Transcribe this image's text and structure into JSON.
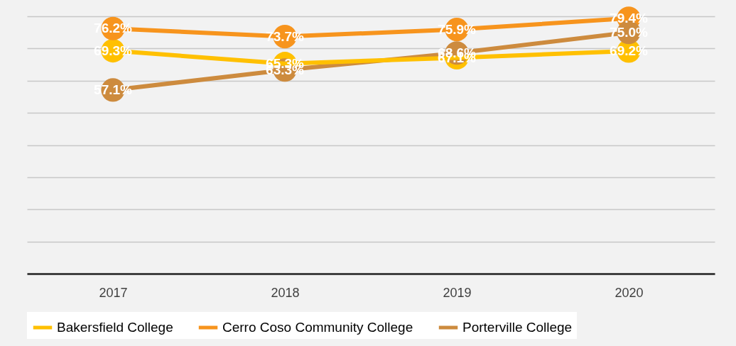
{
  "chart_data": {
    "type": "line",
    "categories": [
      "2017",
      "2018",
      "2019",
      "2020"
    ],
    "series": [
      {
        "name": "Bakersfield College",
        "color": "#ffc000",
        "values": [
          69.3,
          65.3,
          67.1,
          69.2
        ],
        "value_labels": [
          "69.3%",
          "65.3%",
          "67.1%",
          "69.2%"
        ]
      },
      {
        "name": "Cerro Coso Community College",
        "color": "#f7941d",
        "values": [
          76.2,
          73.7,
          75.9,
          79.4
        ],
        "value_labels": [
          "76.2%",
          "73.7%",
          "75.9%",
          "79.4%"
        ]
      },
      {
        "name": "Porterville College",
        "color": "#cd8b3e",
        "values": [
          57.1,
          63.3,
          68.6,
          75.0
        ],
        "value_labels": [
          "57.1%",
          "63.3%",
          "68.6%",
          "75.0%"
        ]
      }
    ],
    "ylim": [
      0,
      80
    ],
    "yticks": [
      {
        "value": 0,
        "label": null
      },
      {
        "value": 10,
        "label": null
      },
      {
        "value": 20,
        "label": null
      },
      {
        "value": 30,
        "label": null
      },
      {
        "value": 40,
        "label": null
      },
      {
        "value": 50,
        "label": null
      },
      {
        "value": 60,
        "label": null
      },
      {
        "value": 70,
        "label": null
      },
      {
        "value": 80,
        "label": null
      }
    ],
    "grid": "y",
    "tick_labels": "x",
    "legend": "bottom",
    "marker": "circle",
    "line_style": "solid"
  }
}
